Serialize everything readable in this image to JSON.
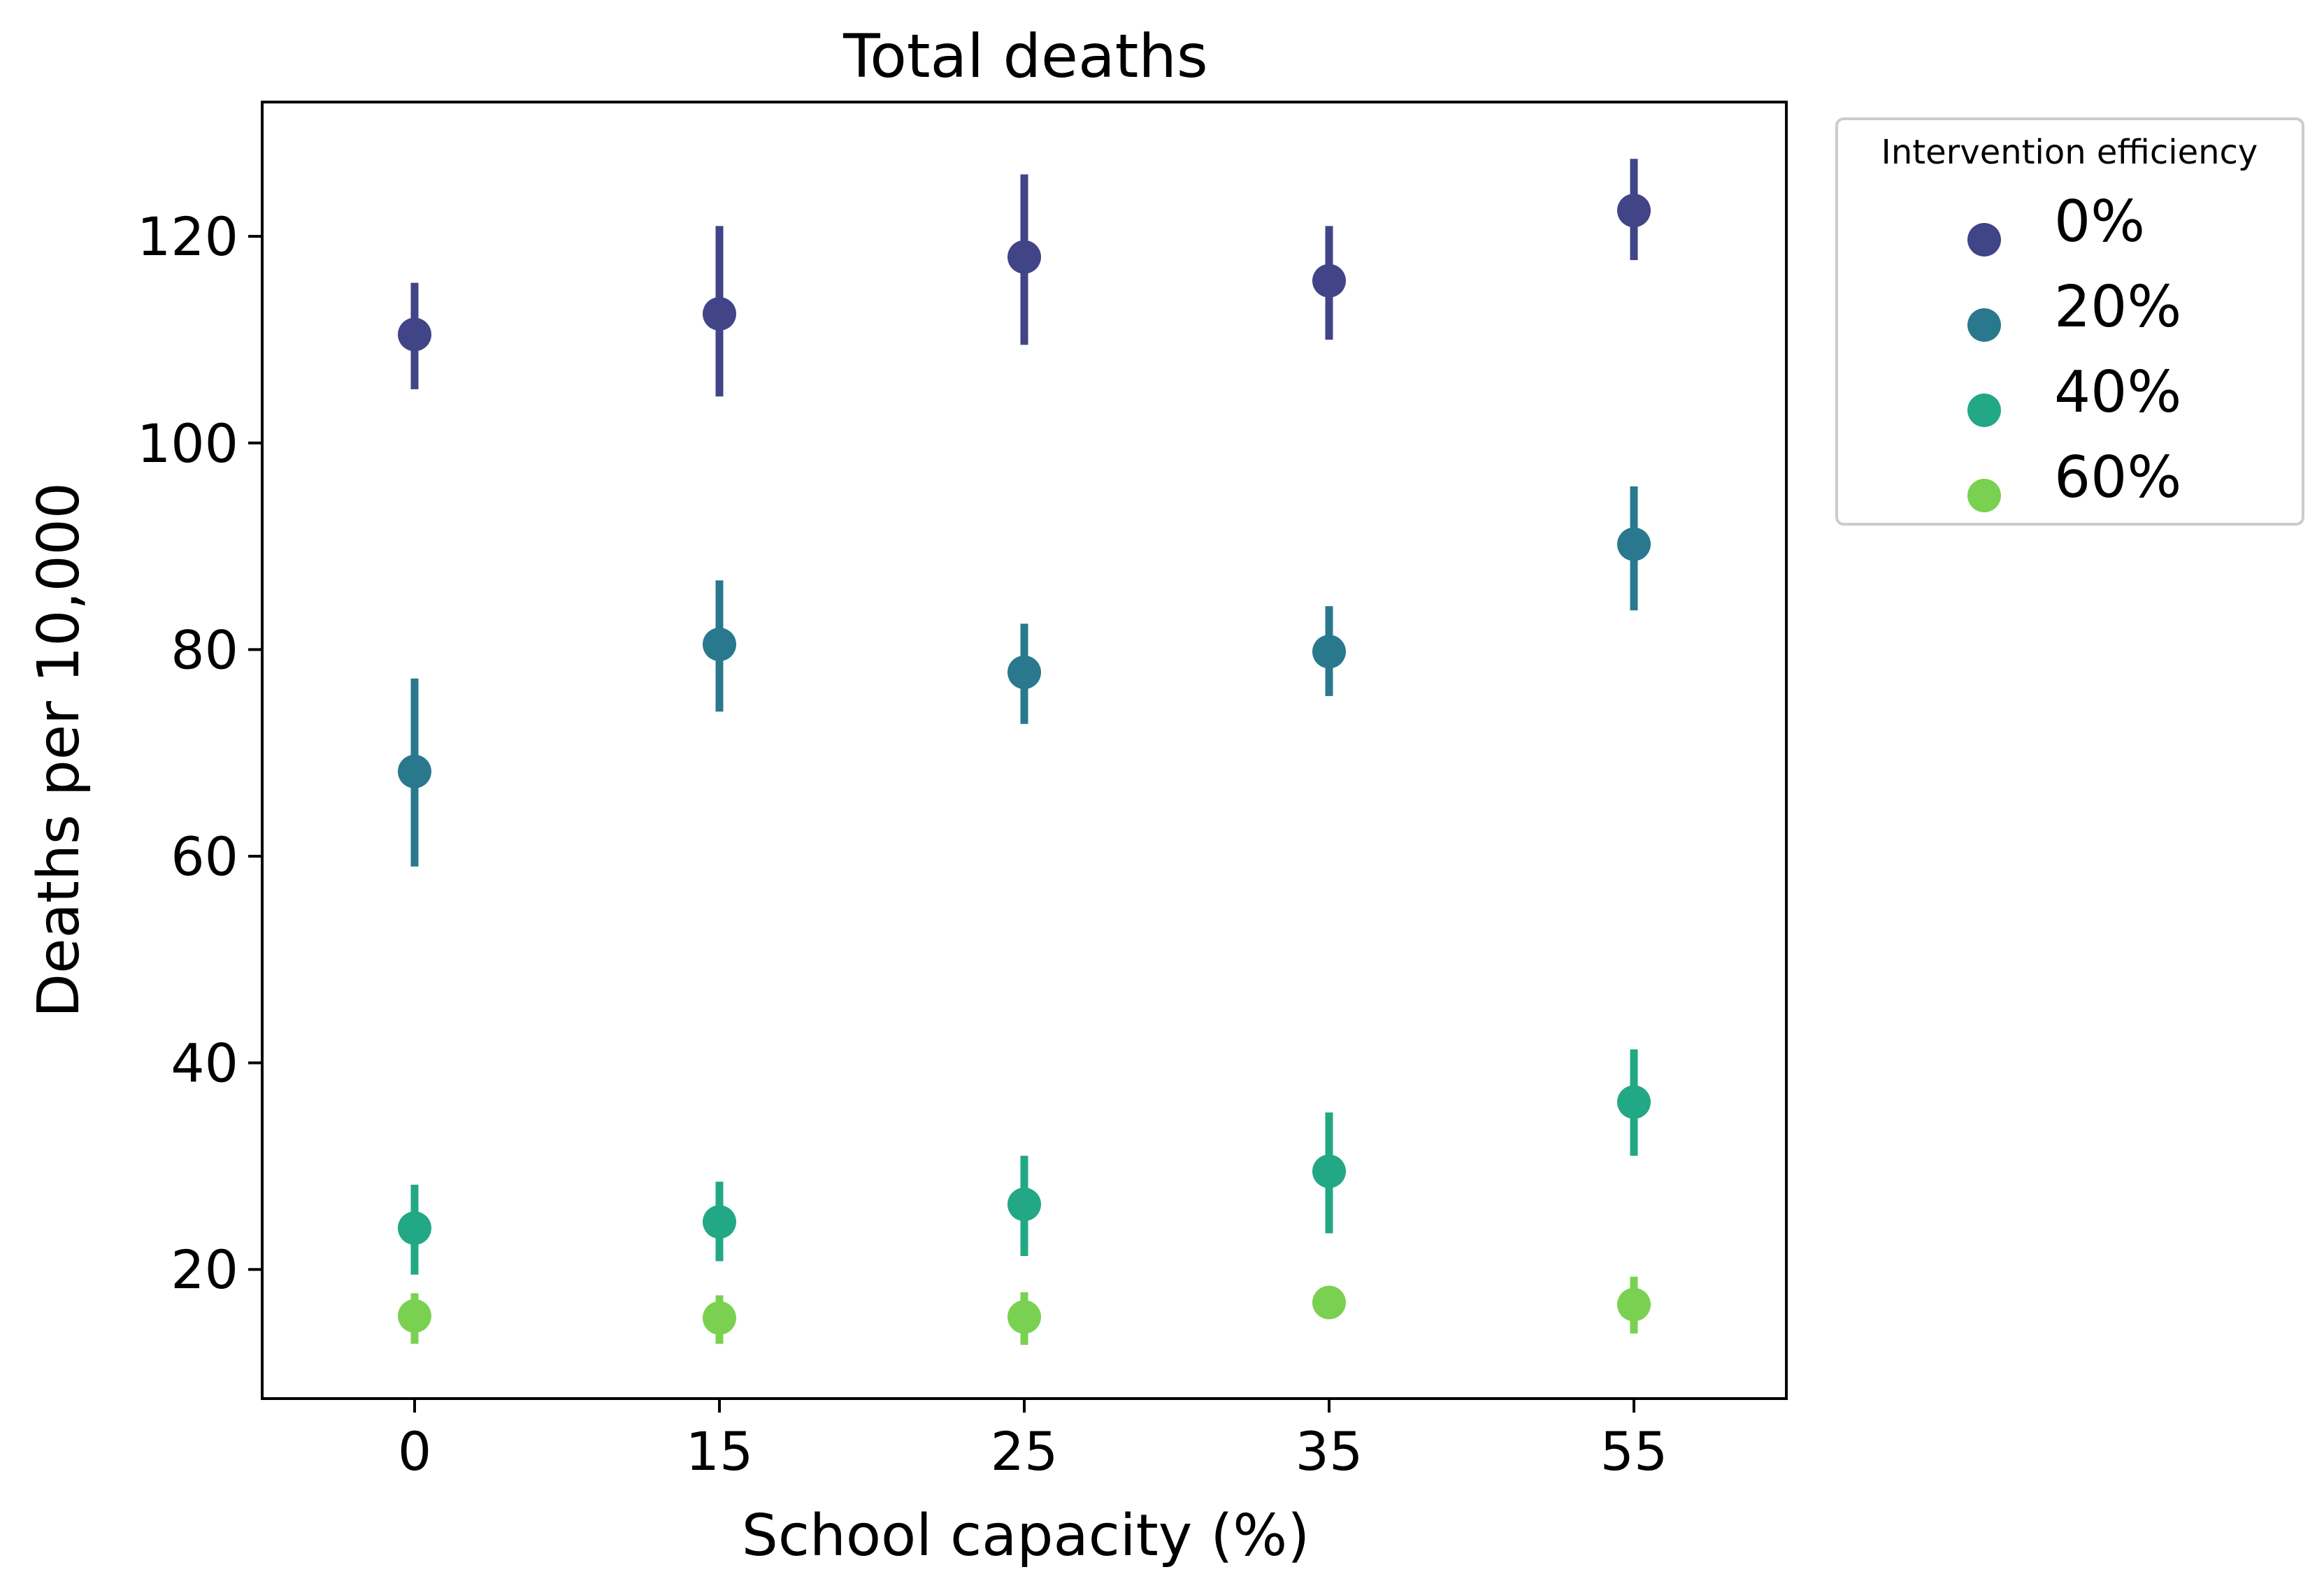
{
  "chart_data": {
    "type": "scatter",
    "title": "Total deaths",
    "xlabel": "School capacity (%)",
    "ylabel": "Deaths per 10,000",
    "categories": [
      "0",
      "15",
      "25",
      "35",
      "55"
    ],
    "yticks": [
      20,
      40,
      60,
      80,
      100,
      120
    ],
    "ylim": [
      7.5,
      133
    ],
    "grid": false,
    "legend": {
      "title": "Intervention efficiency",
      "placement": "outside-top-right"
    },
    "series": [
      {
        "name": "0%",
        "color": "#414487",
        "values": [
          110.5,
          112.5,
          118.0,
          115.7,
          122.5
        ],
        "lower": [
          105.2,
          104.5,
          109.5,
          110.0,
          117.7
        ],
        "upper": [
          115.5,
          121.0,
          126.0,
          121.0,
          127.5
        ]
      },
      {
        "name": "20%",
        "color": "#2a788e",
        "values": [
          68.2,
          80.5,
          77.8,
          79.8,
          90.2
        ],
        "lower": [
          59.0,
          74.0,
          72.8,
          75.5,
          83.8
        ],
        "upper": [
          77.2,
          86.7,
          82.5,
          84.2,
          95.8
        ]
      },
      {
        "name": "40%",
        "color": "#22a884",
        "values": [
          24.0,
          24.6,
          26.3,
          29.5,
          36.2
        ],
        "lower": [
          19.5,
          20.8,
          21.3,
          23.5,
          31.0
        ],
        "upper": [
          28.2,
          28.5,
          31.0,
          35.2,
          41.3
        ]
      },
      {
        "name": "60%",
        "color": "#7ad151",
        "values": [
          15.5,
          15.3,
          15.4,
          16.8,
          16.6
        ],
        "lower": [
          12.8,
          12.8,
          12.7,
          15.6,
          13.8
        ],
        "upper": [
          17.7,
          17.5,
          17.8,
          18.0,
          19.3
        ]
      }
    ]
  }
}
